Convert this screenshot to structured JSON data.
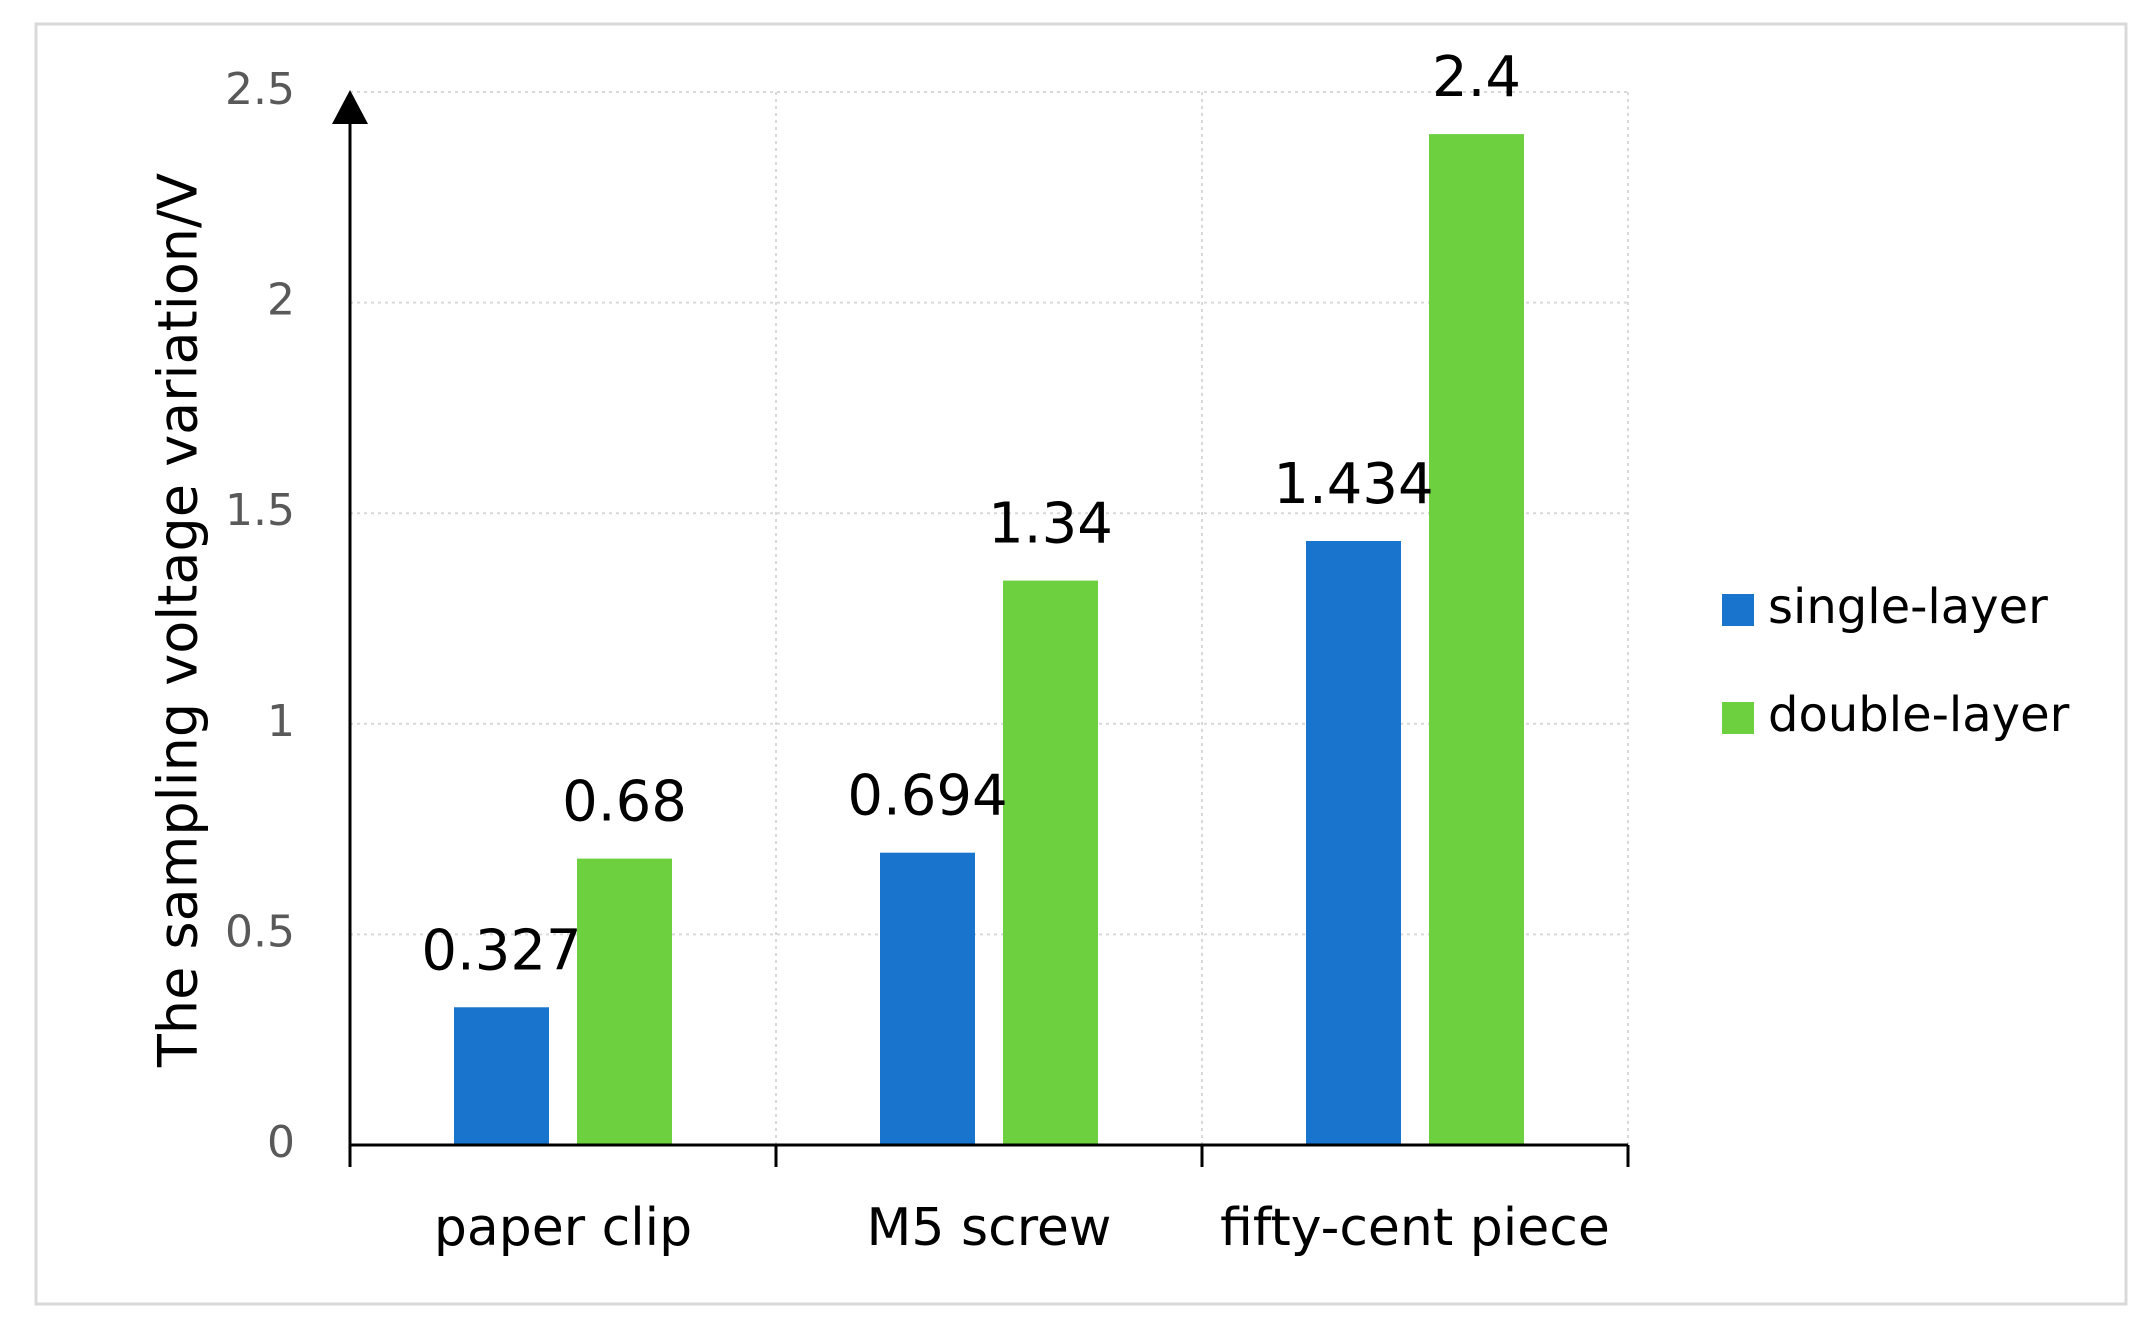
{
  "chart_data": {
    "type": "bar",
    "categories": [
      "paper clip",
      "M5 screw",
      "fifty-cent piece"
    ],
    "series": [
      {
        "name": "single-layer",
        "color": "#1874cd",
        "values": [
          0.327,
          0.694,
          1.434
        ],
        "labels": [
          "0.327",
          "0.694",
          "1.434"
        ]
      },
      {
        "name": "double-layer",
        "color": "#6cd03f",
        "values": [
          0.68,
          1.34,
          2.4
        ],
        "labels": [
          "0.68",
          "1.34",
          "2.4"
        ]
      }
    ],
    "ylabel": "The sampling voltage variation/V",
    "xlabel": "",
    "ylim": [
      0,
      2.5
    ],
    "yticks": [
      "0",
      "0.5",
      "1",
      "1.5",
      "2",
      "2.5"
    ],
    "grid": true,
    "legend": "right"
  }
}
